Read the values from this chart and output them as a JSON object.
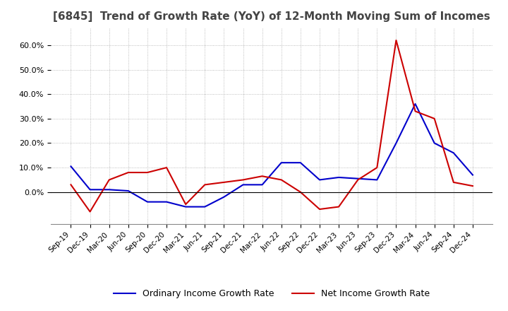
{
  "title": "[6845]  Trend of Growth Rate (YoY) of 12-Month Moving Sum of Incomes",
  "title_fontsize": 11,
  "background_color": "#ffffff",
  "grid_color": "#aaaaaa",
  "ordinary_color": "#0000cc",
  "net_color": "#cc0000",
  "legend_ordinary": "Ordinary Income Growth Rate",
  "legend_net": "Net Income Growth Rate",
  "x_labels": [
    "Sep-19",
    "Dec-19",
    "Mar-20",
    "Jun-20",
    "Sep-20",
    "Dec-20",
    "Mar-21",
    "Jun-21",
    "Sep-21",
    "Dec-21",
    "Mar-22",
    "Jun-22",
    "Sep-22",
    "Dec-22",
    "Mar-23",
    "Jun-23",
    "Sep-23",
    "Dec-23",
    "Mar-24",
    "Jun-24",
    "Sep-24",
    "Dec-24"
  ],
  "ordinary_values": [
    0.105,
    0.01,
    0.01,
    0.005,
    -0.04,
    -0.04,
    -0.06,
    -0.06,
    -0.02,
    0.03,
    0.03,
    0.12,
    0.12,
    0.05,
    0.06,
    0.055,
    0.05,
    0.2,
    0.36,
    0.2,
    0.16,
    0.07
  ],
  "net_values": [
    0.03,
    -0.08,
    0.05,
    0.08,
    0.08,
    0.1,
    -0.05,
    0.03,
    0.04,
    0.05,
    0.065,
    0.05,
    0.0,
    -0.07,
    -0.06,
    0.05,
    0.1,
    0.62,
    0.33,
    0.3,
    0.04,
    0.025
  ],
  "ylim": [
    -0.13,
    0.67
  ],
  "yticks": [
    0.0,
    0.1,
    0.2,
    0.3,
    0.4,
    0.5,
    0.6
  ]
}
